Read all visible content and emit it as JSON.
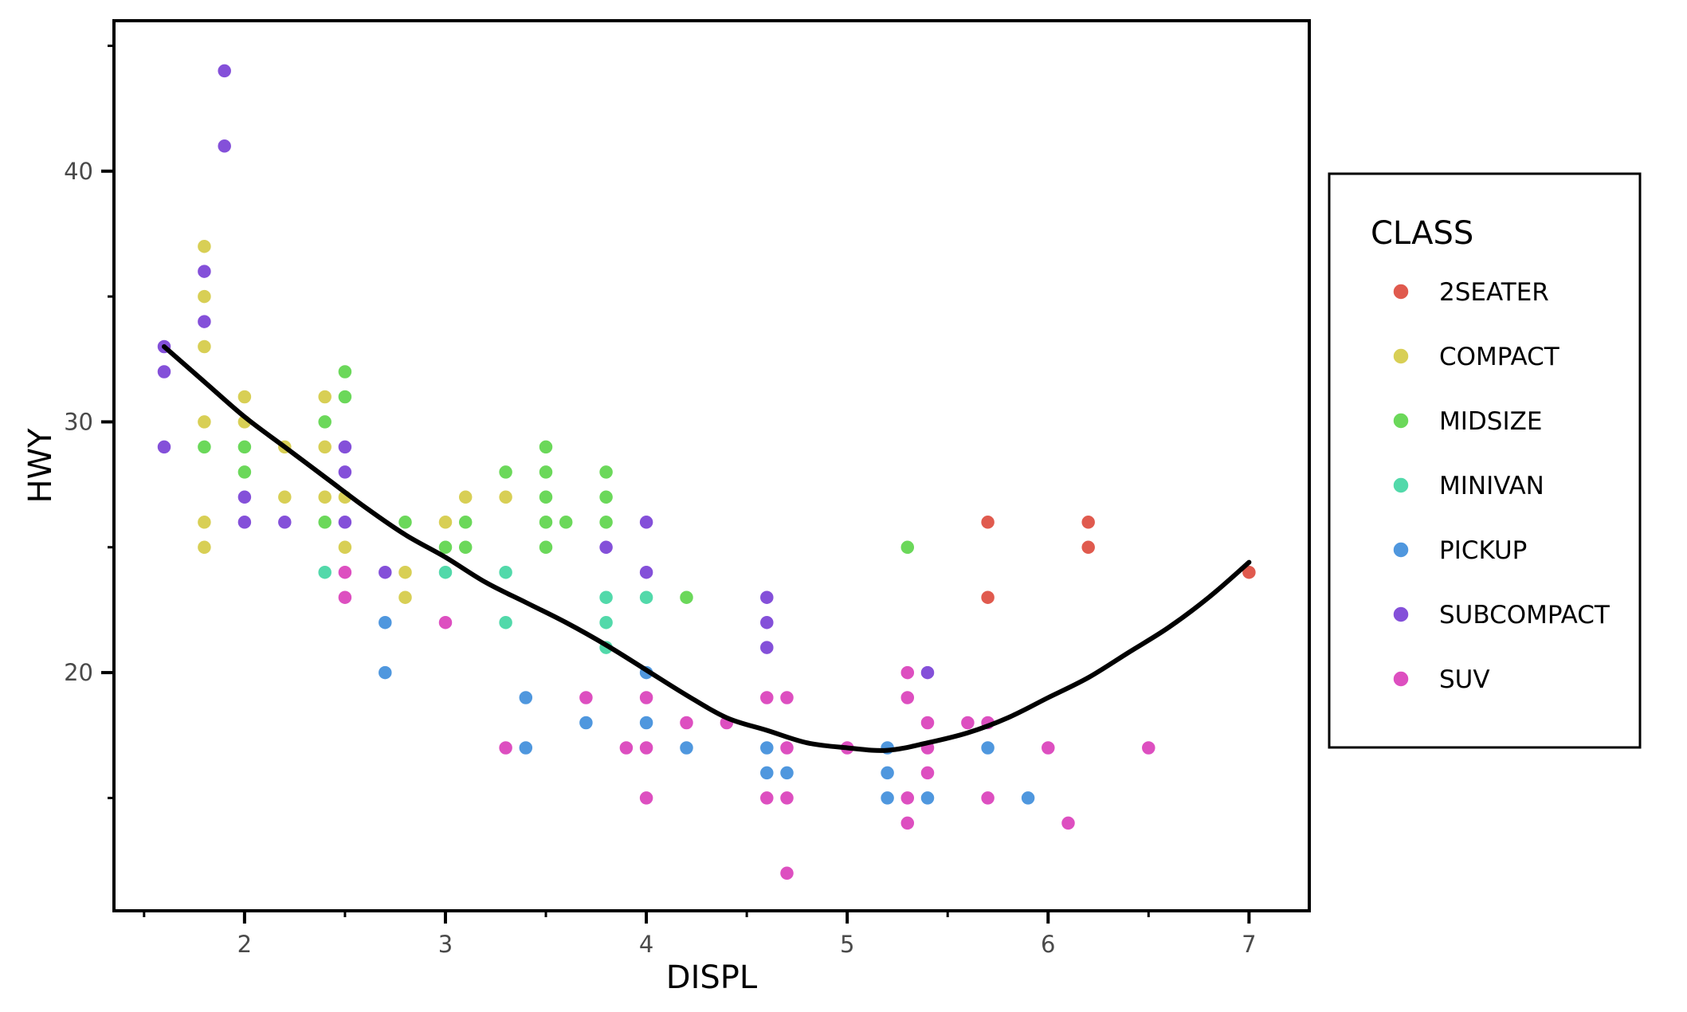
{
  "chart_data": {
    "type": "scatter",
    "xlabel": "DISPL",
    "ylabel": "HWY",
    "xlim": [
      1.35,
      7.3
    ],
    "ylim": [
      10.5,
      46
    ],
    "xticks": [
      2,
      3,
      4,
      5,
      6,
      7
    ],
    "yticks": [
      20,
      30,
      40
    ],
    "grid": false,
    "legend": {
      "title": "CLASS",
      "placement": "right"
    },
    "series": [
      {
        "name": "2SEATER",
        "color": "#e05a4e",
        "points": [
          [
            5.7,
            26
          ],
          [
            5.7,
            23
          ],
          [
            6.2,
            26
          ],
          [
            6.2,
            25
          ],
          [
            7.0,
            24
          ]
        ]
      },
      {
        "name": "COMPACT",
        "color": "#d8cf55",
        "points": [
          [
            1.8,
            37
          ],
          [
            1.8,
            35
          ],
          [
            1.8,
            33
          ],
          [
            1.8,
            30
          ],
          [
            1.8,
            29
          ],
          [
            1.8,
            26
          ],
          [
            1.8,
            25
          ],
          [
            2.0,
            31
          ],
          [
            2.0,
            30
          ],
          [
            2.2,
            29
          ],
          [
            2.2,
            27
          ],
          [
            2.4,
            31
          ],
          [
            2.4,
            29
          ],
          [
            2.4,
            27
          ],
          [
            2.5,
            27
          ],
          [
            2.5,
            25
          ],
          [
            2.8,
            24
          ],
          [
            2.8,
            23
          ],
          [
            3.0,
            26
          ],
          [
            3.1,
            27
          ],
          [
            3.3,
            27
          ]
        ]
      },
      {
        "name": "MIDSIZE",
        "color": "#6bd85a",
        "points": [
          [
            1.8,
            29
          ],
          [
            2.0,
            29
          ],
          [
            2.0,
            28
          ],
          [
            2.4,
            30
          ],
          [
            2.4,
            26
          ],
          [
            2.5,
            32
          ],
          [
            2.5,
            31
          ],
          [
            2.8,
            26
          ],
          [
            3.0,
            25
          ],
          [
            3.1,
            26
          ],
          [
            3.1,
            25
          ],
          [
            3.3,
            28
          ],
          [
            3.5,
            29
          ],
          [
            3.5,
            28
          ],
          [
            3.5,
            27
          ],
          [
            3.5,
            26
          ],
          [
            3.5,
            25
          ],
          [
            3.6,
            26
          ],
          [
            3.8,
            28
          ],
          [
            3.8,
            27
          ],
          [
            3.8,
            26
          ],
          [
            4.2,
            23
          ],
          [
            5.3,
            25
          ]
        ]
      },
      {
        "name": "MINIVAN",
        "color": "#52d9aa",
        "points": [
          [
            2.4,
            24
          ],
          [
            3.0,
            24
          ],
          [
            3.3,
            24
          ],
          [
            3.3,
            22
          ],
          [
            3.8,
            23
          ],
          [
            3.8,
            22
          ],
          [
            3.8,
            21
          ],
          [
            4.0,
            23
          ]
        ]
      },
      {
        "name": "PICKUP",
        "color": "#4f97de",
        "points": [
          [
            2.7,
            22
          ],
          [
            2.7,
            20
          ],
          [
            3.4,
            19
          ],
          [
            3.4,
            17
          ],
          [
            3.7,
            18
          ],
          [
            4.0,
            20
          ],
          [
            4.0,
            18
          ],
          [
            4.2,
            17
          ],
          [
            4.6,
            17
          ],
          [
            4.6,
            16
          ],
          [
            4.7,
            17
          ],
          [
            4.7,
            16
          ],
          [
            5.2,
            17
          ],
          [
            5.2,
            16
          ],
          [
            5.2,
            15
          ],
          [
            5.4,
            15
          ],
          [
            5.7,
            17
          ],
          [
            5.9,
            15
          ]
        ]
      },
      {
        "name": "SUBCOMPACT",
        "color": "#8450d9",
        "points": [
          [
            1.6,
            33
          ],
          [
            1.6,
            32
          ],
          [
            1.6,
            29
          ],
          [
            1.8,
            36
          ],
          [
            1.8,
            34
          ],
          [
            1.9,
            44
          ],
          [
            1.9,
            41
          ],
          [
            2.0,
            27
          ],
          [
            2.0,
            26
          ],
          [
            2.2,
            26
          ],
          [
            2.5,
            29
          ],
          [
            2.5,
            28
          ],
          [
            2.5,
            26
          ],
          [
            2.7,
            24
          ],
          [
            3.8,
            25
          ],
          [
            4.0,
            26
          ],
          [
            4.0,
            24
          ],
          [
            4.6,
            23
          ],
          [
            4.6,
            22
          ],
          [
            4.6,
            21
          ],
          [
            5.4,
            20
          ]
        ]
      },
      {
        "name": "SUV",
        "color": "#dd4fc0",
        "points": [
          [
            2.5,
            24
          ],
          [
            2.5,
            23
          ],
          [
            3.0,
            22
          ],
          [
            3.3,
            17
          ],
          [
            3.7,
            19
          ],
          [
            3.9,
            17
          ],
          [
            4.0,
            19
          ],
          [
            4.0,
            17
          ],
          [
            4.0,
            15
          ],
          [
            4.2,
            18
          ],
          [
            4.4,
            18
          ],
          [
            4.6,
            19
          ],
          [
            4.6,
            15
          ],
          [
            4.7,
            19
          ],
          [
            4.7,
            17
          ],
          [
            4.7,
            15
          ],
          [
            4.7,
            12
          ],
          [
            5.0,
            17
          ],
          [
            5.3,
            20
          ],
          [
            5.3,
            19
          ],
          [
            5.3,
            15
          ],
          [
            5.3,
            14
          ],
          [
            5.4,
            18
          ],
          [
            5.4,
            17
          ],
          [
            5.4,
            16
          ],
          [
            5.6,
            18
          ],
          [
            5.7,
            18
          ],
          [
            5.7,
            15
          ],
          [
            6.0,
            17
          ],
          [
            6.1,
            14
          ],
          [
            6.5,
            17
          ]
        ]
      }
    ],
    "trend_line": {
      "type": "smooth",
      "color": "#000000",
      "points": [
        [
          1.6,
          33.0
        ],
        [
          1.8,
          31.6
        ],
        [
          2.0,
          30.2
        ],
        [
          2.2,
          29.0
        ],
        [
          2.4,
          27.8
        ],
        [
          2.6,
          26.6
        ],
        [
          2.8,
          25.5
        ],
        [
          3.0,
          24.6
        ],
        [
          3.2,
          23.6
        ],
        [
          3.4,
          22.8
        ],
        [
          3.6,
          22.0
        ],
        [
          3.8,
          21.1
        ],
        [
          4.0,
          20.1
        ],
        [
          4.2,
          19.1
        ],
        [
          4.4,
          18.2
        ],
        [
          4.6,
          17.7
        ],
        [
          4.8,
          17.2
        ],
        [
          5.0,
          17.0
        ],
        [
          5.2,
          16.9
        ],
        [
          5.4,
          17.2
        ],
        [
          5.6,
          17.6
        ],
        [
          5.8,
          18.2
        ],
        [
          6.0,
          19.0
        ],
        [
          6.2,
          19.8
        ],
        [
          6.4,
          20.8
        ],
        [
          6.6,
          21.8
        ],
        [
          6.8,
          23.0
        ],
        [
          7.0,
          24.4
        ]
      ]
    }
  }
}
